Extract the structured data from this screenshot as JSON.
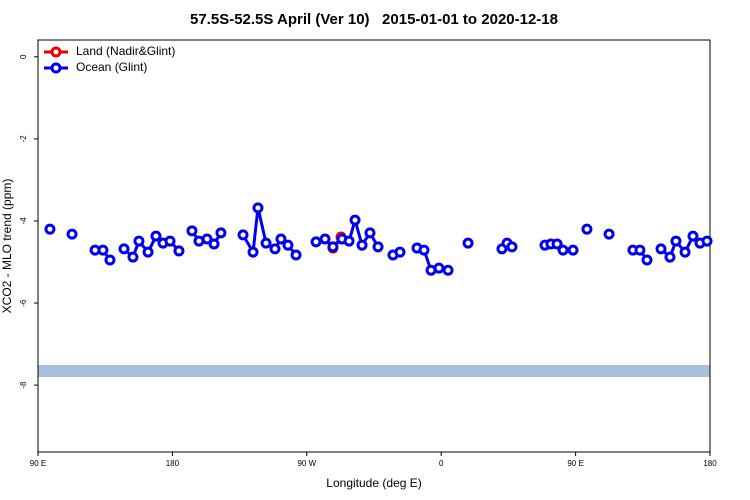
{
  "chart_data": {
    "type": "line",
    "title": "57.5S-52.5S April (Ver 10)   2015-01-01 to 2020-12-18",
    "x_label": "Longitude (deg E)",
    "y_label": "XCO2 - MLO trend (ppm)",
    "xlim": [
      90,
      540
    ],
    "ylim": [
      -9.63,
      0.41
    ],
    "xticks": [
      {
        "value": 90,
        "label": "90 E"
      },
      {
        "value": 180,
        "label": "180"
      },
      {
        "value": 270,
        "label": "90 W"
      },
      {
        "value": 360,
        "label": "0"
      },
      {
        "value": 450,
        "label": "90 E"
      },
      {
        "value": 540,
        "label": "180"
      }
    ],
    "yticks": [
      0,
      -2,
      -4,
      -6,
      -8
    ],
    "legend": "top-left",
    "series": [
      {
        "name": "Land (Nadir&Glint)",
        "color": "#ee0000",
        "x": [
          287.5,
          292.9
        ],
        "values": [
          -4.66,
          -4.39
        ]
      },
      {
        "name": "Ocean (Glint)",
        "color": "#0000ee",
        "x": [
          98,
          null,
          112.8,
          null,
          128.2,
          133.5,
          138.2,
          null,
          147.6,
          153.6,
          157.6,
          163.7,
          169,
          173.7,
          178.4,
          184.4,
          null,
          193.1,
          197.8,
          203.2,
          207.9,
          212.5,
          null,
          227.3,
          234,
          237.3,
          242.7,
          248.7,
          252.7,
          257.4,
          262.8,
          null,
          276.2,
          282.2,
          287.5,
          293.6,
          298.3,
          302.3,
          307,
          312.3,
          317.7,
          null,
          327.7,
          332.4,
          null,
          343.8,
          348.5,
          353.2,
          358.5,
          364.6,
          null,
          378,
          null,
          400.7,
          404.1,
          407.4,
          null,
          429.5,
          433.5,
          437.6,
          441.6,
          448.3,
          null,
          457.6,
          null,
          472.4,
          null,
          488.4,
          493.1,
          497.8,
          null,
          507.2,
          513.2,
          517.2,
          523.3,
          528.6,
          533.3,
          538
        ],
        "values": [
          -4.2,
          null,
          -4.32,
          null,
          -4.71,
          -4.71,
          -4.95,
          null,
          -4.68,
          -4.88,
          -4.49,
          -4.76,
          -4.37,
          -4.54,
          -4.49,
          -4.73,
          null,
          -4.24,
          -4.49,
          -4.44,
          -4.56,
          -4.29,
          null,
          -4.34,
          -4.76,
          -3.68,
          -4.54,
          -4.68,
          -4.44,
          -4.59,
          -4.83,
          null,
          -4.51,
          -4.44,
          -4.63,
          -4.44,
          -4.49,
          -3.98,
          -4.59,
          -4.29,
          -4.63,
          null,
          -4.83,
          -4.76,
          null,
          -4.66,
          -4.71,
          -5.2,
          -5.15,
          -5.2,
          null,
          -4.54,
          null,
          -4.68,
          -4.54,
          -4.63,
          null,
          -4.59,
          -4.56,
          -4.56,
          -4.71,
          -4.71,
          null,
          -4.2,
          null,
          -4.32,
          null,
          -4.71,
          -4.71,
          -4.95,
          null,
          -4.68,
          -4.88,
          -4.49,
          -4.76,
          -4.37,
          -4.54,
          -4.49
        ]
      }
    ]
  }
}
